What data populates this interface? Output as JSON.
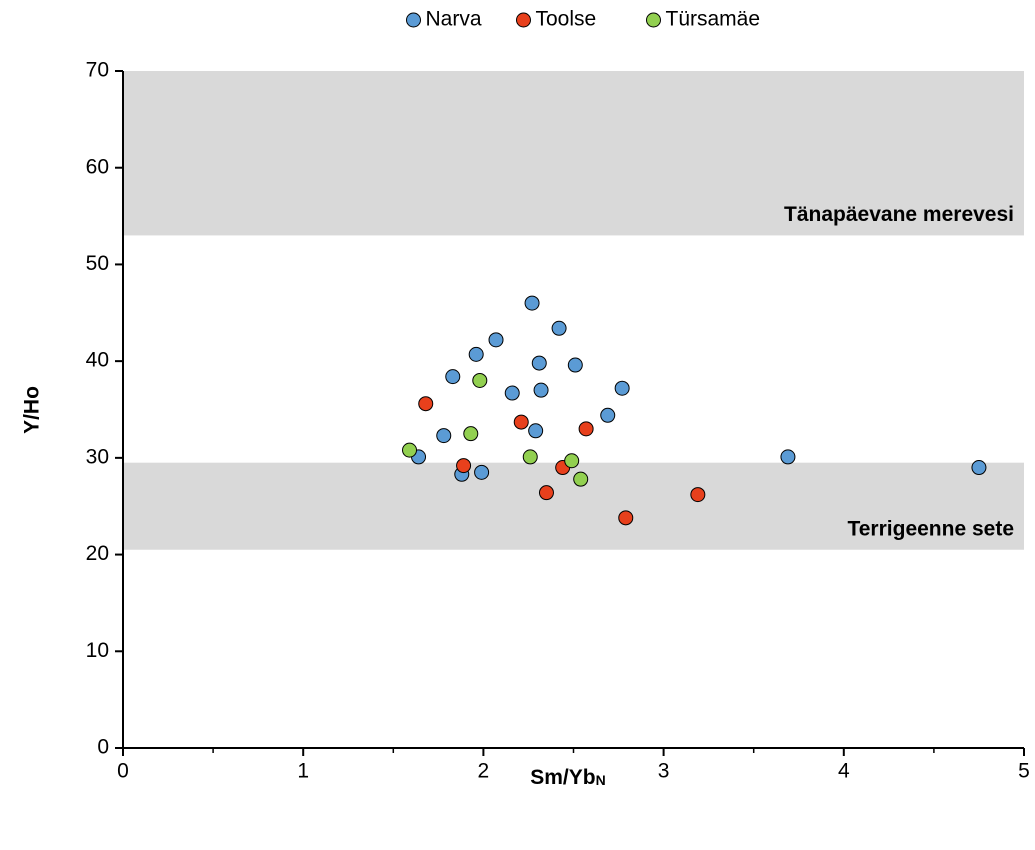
{
  "chart_data": {
    "type": "scatter",
    "xlabel": "Sm/Yb",
    "xlabel_subscript": "N",
    "ylabel": "Y/Ho",
    "xlim": [
      0,
      5
    ],
    "xticks": [
      0,
      1,
      2,
      3,
      4,
      5
    ],
    "xminor": [
      0.5,
      1.5,
      2.5,
      3.5,
      4.5
    ],
    "ylim": [
      0,
      70
    ],
    "yticks": [
      0,
      10,
      20,
      30,
      40,
      50,
      60,
      70
    ],
    "legend": "top",
    "bands": [
      {
        "label": "Tänapäevane merevesi",
        "ylim": [
          53,
          70
        ],
        "color": "#d9d9d9"
      },
      {
        "label": "Terrigeenne sete",
        "ylim": [
          20.5,
          29.5
        ],
        "color": "#d9d9d9"
      }
    ],
    "series": [
      {
        "name": "Narva",
        "color": "#5b9bd5",
        "x": [
          1.64,
          1.83,
          1.78,
          1.88,
          1.96,
          1.99,
          2.07,
          2.16,
          2.27,
          2.29,
          2.31,
          2.32,
          2.42,
          2.51,
          2.69,
          2.77,
          3.69,
          4.75
        ],
        "values": [
          30.1,
          38.4,
          32.3,
          28.3,
          40.7,
          28.5,
          42.2,
          36.7,
          46.0,
          32.8,
          39.8,
          37.0,
          43.4,
          39.6,
          34.4,
          37.2,
          30.1,
          29.0
        ]
      },
      {
        "name": "Toolse",
        "color": "#e8401c",
        "x": [
          1.68,
          1.89,
          2.21,
          2.35,
          2.44,
          2.57,
          2.79,
          3.19
        ],
        "values": [
          35.6,
          29.2,
          33.7,
          26.4,
          29.0,
          33.0,
          23.8,
          26.2
        ]
      },
      {
        "name": "Türsamäe",
        "color": "#92d050",
        "x": [
          1.59,
          1.93,
          1.98,
          2.26,
          2.49,
          2.54
        ],
        "values": [
          30.8,
          32.5,
          38.0,
          30.1,
          29.7,
          27.8
        ]
      }
    ]
  }
}
